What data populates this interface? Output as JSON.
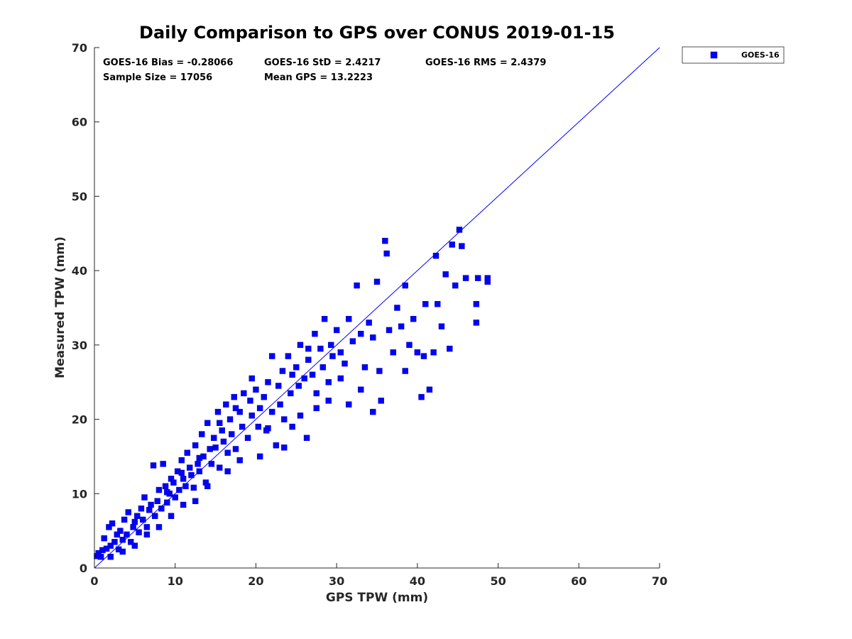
{
  "chart_data": {
    "type": "scatter",
    "title": "Daily Comparison to GPS over CONUS 2019-01-15",
    "xlabel": "GPS TPW (mm)",
    "ylabel": "Measured TPW (mm)",
    "xlim": [
      0,
      70
    ],
    "ylim": [
      0,
      70
    ],
    "xticks": [
      "0",
      "10",
      "20",
      "30",
      "40",
      "50",
      "60",
      "70"
    ],
    "yticks": [
      "0",
      "10",
      "20",
      "30",
      "40",
      "50",
      "60",
      "70"
    ],
    "grid": false,
    "legend_position": "outside-top-right",
    "stats": {
      "bias": "GOES-16 Bias = -0.28066",
      "std": "GOES-16 StD = 2.4217",
      "rms": "GOES-16 RMS = 2.4379",
      "sample_size": "Sample Size = 17056",
      "mean_gps": "Mean GPS = 13.2223"
    },
    "reference_line": {
      "name": "1:1 line",
      "from": [
        0,
        0
      ],
      "to": [
        70,
        70
      ],
      "color": "#0000ff"
    },
    "series": [
      {
        "name": "GOES-16",
        "color": "#0000ff",
        "marker": "square",
        "points": [
          [
            0.3,
            1.6
          ],
          [
            0.5,
            2.0
          ],
          [
            0.8,
            1.5
          ],
          [
            1.0,
            2.4
          ],
          [
            1.2,
            4.0
          ],
          [
            1.5,
            2.6
          ],
          [
            1.8,
            5.5
          ],
          [
            2.0,
            3.0
          ],
          [
            2.2,
            6.0
          ],
          [
            2.5,
            3.5
          ],
          [
            2.8,
            4.5
          ],
          [
            3.0,
            2.5
          ],
          [
            3.2,
            5.0
          ],
          [
            3.5,
            3.8
          ],
          [
            3.7,
            6.5
          ],
          [
            4.0,
            4.5
          ],
          [
            4.2,
            7.5
          ],
          [
            4.5,
            3.5
          ],
          [
            4.8,
            5.5
          ],
          [
            5.0,
            6.2
          ],
          [
            5.3,
            7.0
          ],
          [
            5.5,
            4.8
          ],
          [
            5.8,
            8.0
          ],
          [
            6.0,
            6.5
          ],
          [
            6.2,
            9.5
          ],
          [
            6.5,
            5.5
          ],
          [
            6.8,
            7.8
          ],
          [
            7.0,
            8.5
          ],
          [
            7.3,
            13.8
          ],
          [
            7.5,
            7.0
          ],
          [
            7.8,
            9.0
          ],
          [
            8.0,
            10.5
          ],
          [
            8.3,
            8.0
          ],
          [
            8.5,
            14.0
          ],
          [
            8.8,
            11.0
          ],
          [
            9.0,
            8.8
          ],
          [
            9.3,
            10.0
          ],
          [
            9.5,
            12.0
          ],
          [
            9.8,
            11.5
          ],
          [
            10.0,
            9.5
          ],
          [
            10.3,
            13.0
          ],
          [
            10.5,
            10.5
          ],
          [
            10.8,
            14.5
          ],
          [
            11.0,
            12.0
          ],
          [
            11.3,
            11.0
          ],
          [
            11.5,
            15.5
          ],
          [
            11.8,
            13.5
          ],
          [
            12.0,
            12.5
          ],
          [
            12.3,
            10.8
          ],
          [
            12.5,
            16.5
          ],
          [
            12.8,
            14.0
          ],
          [
            13.0,
            13.0
          ],
          [
            13.3,
            18.0
          ],
          [
            13.5,
            15.0
          ],
          [
            13.8,
            11.5
          ],
          [
            14.0,
            19.5
          ],
          [
            14.3,
            16.0
          ],
          [
            14.5,
            14.0
          ],
          [
            14.8,
            17.5
          ],
          [
            15.0,
            16.2
          ],
          [
            15.3,
            21.0
          ],
          [
            15.5,
            13.5
          ],
          [
            15.8,
            18.5
          ],
          [
            16.0,
            17.0
          ],
          [
            16.3,
            22.0
          ],
          [
            16.5,
            15.5
          ],
          [
            16.8,
            20.0
          ],
          [
            17.0,
            18.0
          ],
          [
            17.3,
            23.0
          ],
          [
            17.5,
            16.0
          ],
          [
            18.0,
            21.0
          ],
          [
            18.3,
            19.0
          ],
          [
            18.5,
            23.5
          ],
          [
            19.0,
            17.5
          ],
          [
            19.3,
            22.5
          ],
          [
            19.5,
            20.5
          ],
          [
            20.0,
            24.0
          ],
          [
            20.3,
            19.0
          ],
          [
            20.5,
            21.5
          ],
          [
            21.0,
            23.0
          ],
          [
            21.3,
            18.5
          ],
          [
            21.5,
            25.0
          ],
          [
            22.0,
            21.0
          ],
          [
            22.5,
            16.5
          ],
          [
            22.8,
            24.5
          ],
          [
            23.0,
            22.0
          ],
          [
            23.3,
            26.5
          ],
          [
            23.5,
            20.0
          ],
          [
            24.0,
            28.5
          ],
          [
            24.3,
            23.5
          ],
          [
            24.5,
            19.0
          ],
          [
            25.0,
            27.0
          ],
          [
            25.3,
            24.5
          ],
          [
            25.5,
            30.0
          ],
          [
            26.0,
            25.5
          ],
          [
            26.3,
            17.5
          ],
          [
            26.5,
            28.0
          ],
          [
            27.0,
            26.0
          ],
          [
            27.3,
            31.5
          ],
          [
            27.5,
            23.5
          ],
          [
            28.0,
            29.5
          ],
          [
            28.3,
            27.0
          ],
          [
            28.5,
            33.5
          ],
          [
            29.0,
            25.0
          ],
          [
            29.3,
            30.0
          ],
          [
            29.5,
            28.5
          ],
          [
            30.0,
            32.0
          ],
          [
            30.5,
            29.0
          ],
          [
            31.0,
            27.5
          ],
          [
            31.5,
            33.5
          ],
          [
            32.0,
            30.5
          ],
          [
            32.5,
            38.0
          ],
          [
            33.0,
            31.5
          ],
          [
            33.5,
            27.0
          ],
          [
            34.0,
            33.0
          ],
          [
            34.5,
            31.0
          ],
          [
            35.0,
            38.5
          ],
          [
            35.3,
            26.5
          ],
          [
            35.5,
            22.5
          ],
          [
            36.0,
            44.0
          ],
          [
            36.2,
            42.3
          ],
          [
            36.5,
            32.0
          ],
          [
            37.0,
            29.0
          ],
          [
            37.5,
            35.0
          ],
          [
            38.0,
            32.5
          ],
          [
            38.5,
            38.0
          ],
          [
            38.5,
            26.5
          ],
          [
            39.0,
            30.0
          ],
          [
            39.5,
            33.5
          ],
          [
            40.0,
            29.0
          ],
          [
            40.5,
            23.0
          ],
          [
            40.8,
            28.5
          ],
          [
            41.0,
            35.5
          ],
          [
            41.5,
            24.0
          ],
          [
            42.0,
            29.0
          ],
          [
            42.3,
            42.0
          ],
          [
            42.5,
            35.5
          ],
          [
            43.0,
            32.5
          ],
          [
            43.5,
            39.5
          ],
          [
            44.0,
            29.5
          ],
          [
            44.3,
            43.5
          ],
          [
            44.7,
            38.0
          ],
          [
            45.2,
            45.5
          ],
          [
            45.5,
            43.3
          ],
          [
            46.0,
            39.0
          ],
          [
            47.3,
            35.5
          ],
          [
            47.3,
            33.0
          ],
          [
            47.5,
            39.0
          ],
          [
            48.7,
            38.5
          ],
          [
            48.7,
            39.0
          ],
          [
            2.0,
            1.5
          ],
          [
            3.5,
            2.2
          ],
          [
            5.0,
            3.0
          ],
          [
            6.5,
            4.5
          ],
          [
            8.0,
            5.5
          ],
          [
            9.5,
            7.0
          ],
          [
            11.0,
            8.5
          ],
          [
            12.5,
            9.0
          ],
          [
            14.0,
            11.0
          ],
          [
            16.5,
            13.0
          ],
          [
            18.0,
            14.5
          ],
          [
            20.5,
            15.0
          ],
          [
            23.5,
            16.2
          ],
          [
            21.5,
            18.8
          ],
          [
            25.5,
            20.5
          ],
          [
            27.5,
            21.5
          ],
          [
            29.0,
            22.5
          ],
          [
            31.5,
            22.0
          ],
          [
            33.0,
            24.0
          ],
          [
            34.5,
            21.0
          ],
          [
            30.5,
            25.5
          ],
          [
            26.5,
            29.5
          ],
          [
            24.5,
            26.0
          ],
          [
            22.0,
            28.5
          ],
          [
            19.5,
            25.5
          ],
          [
            17.5,
            21.5
          ],
          [
            15.5,
            19.5
          ],
          [
            13.0,
            14.8
          ],
          [
            10.8,
            12.8
          ],
          [
            9.0,
            10.2
          ]
        ]
      }
    ]
  }
}
